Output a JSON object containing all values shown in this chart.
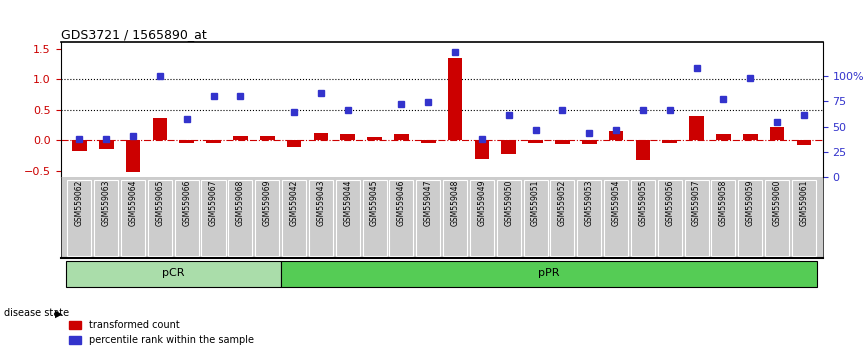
{
  "title": "GDS3721 / 1565890_at",
  "samples": [
    "GSM559062",
    "GSM559063",
    "GSM559064",
    "GSM559065",
    "GSM559066",
    "GSM559067",
    "GSM559068",
    "GSM559069",
    "GSM559042",
    "GSM559043",
    "GSM559044",
    "GSM559045",
    "GSM559046",
    "GSM559047",
    "GSM559048",
    "GSM559049",
    "GSM559050",
    "GSM559051",
    "GSM559052",
    "GSM559053",
    "GSM559054",
    "GSM559055",
    "GSM559056",
    "GSM559057",
    "GSM559058",
    "GSM559059",
    "GSM559060",
    "GSM559061"
  ],
  "transformed_count": [
    -0.18,
    -0.14,
    -0.52,
    0.36,
    -0.04,
    -0.04,
    0.08,
    0.08,
    -0.1,
    0.12,
    0.1,
    0.06,
    0.1,
    -0.04,
    1.35,
    -0.3,
    -0.22,
    -0.04,
    -0.06,
    -0.06,
    0.15,
    -0.32,
    -0.04,
    0.4,
    0.1,
    0.1,
    0.22,
    -0.08
  ],
  "percentile_rank": [
    0.02,
    0.02,
    0.08,
    1.05,
    0.35,
    0.72,
    0.72,
    null,
    0.47,
    0.77,
    0.5,
    null,
    0.6,
    0.62,
    1.45,
    0.02,
    0.42,
    0.17,
    0.5,
    0.12,
    0.17,
    0.5,
    0.5,
    1.18,
    0.67,
    1.02,
    0.3,
    0.42
  ],
  "pCR_count": 8,
  "ylim_left": [
    -0.6,
    1.6
  ],
  "ylim_right": [
    0,
    133.3
  ],
  "yticks_left": [
    -0.5,
    0.0,
    0.5,
    1.0,
    1.5
  ],
  "yticks_right": [
    0,
    25,
    50,
    75,
    100
  ],
  "bar_color": "#cc0000",
  "dot_color": "#3333cc",
  "pCR_color": "#aaddaa",
  "pPR_color": "#55cc55",
  "background_color": "#ffffff",
  "hline_color": "#cc0000",
  "label_bg_color": "#cccccc"
}
